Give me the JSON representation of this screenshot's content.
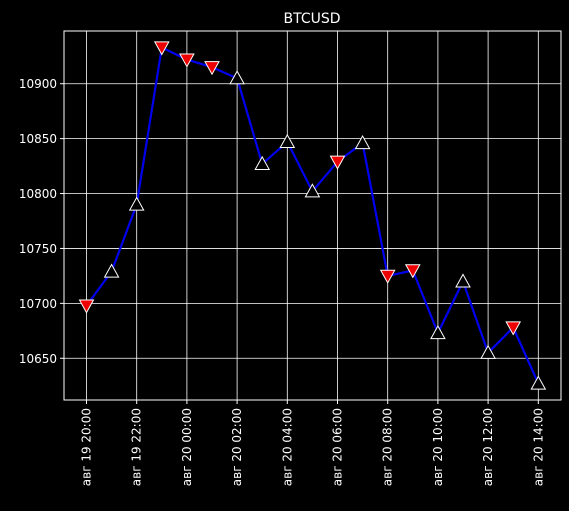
{
  "chart_data": {
    "type": "line",
    "title": "BTCUSD",
    "xlabel": "",
    "ylabel": "",
    "ylim": [
      10612,
      10948
    ],
    "grid": true,
    "x": [
      "авг 19 20:00",
      "авг 19 21:00",
      "авг 19 22:00",
      "авг 19 23:00",
      "авг 20 00:00",
      "авг 20 01:00",
      "авг 20 02:00",
      "авг 20 03:00",
      "авг 20 04:00",
      "авг 20 05:00",
      "авг 20 06:00",
      "авг 20 07:00",
      "авг 20 08:00",
      "авг 20 09:00",
      "авг 20 10:00",
      "авг 20 11:00",
      "авг 20 12:00",
      "авг 20 13:00",
      "авг 20 14:00"
    ],
    "x_tick_labels": [
      "авг 19 20:00",
      "авг 19 22:00",
      "авг 20 00:00",
      "авг 20 02:00",
      "авг 20 04:00",
      "авг 20 06:00",
      "авг 20 08:00",
      "авг 20 10:00",
      "авг 20 12:00",
      "авг 20 14:00"
    ],
    "y_ticks": [
      10650,
      10700,
      10750,
      10800,
      10850,
      10900
    ],
    "series": [
      {
        "values": [
          10698,
          10729,
          10790,
          10933,
          10922,
          10915,
          10905,
          10827,
          10847,
          10802,
          10829,
          10846,
          10725,
          10730,
          10673,
          10720,
          10655,
          10678,
          10627
        ],
        "markers": [
          "down",
          "up",
          "up",
          "down",
          "down",
          "down",
          "up",
          "up",
          "up",
          "up",
          "down",
          "up",
          "down",
          "down",
          "up",
          "up",
          "up",
          "down",
          "up"
        ]
      }
    ],
    "colors": {
      "line": "#0000ee",
      "up_marker": "#000000",
      "down_marker": "#ee0000",
      "marker_edge": "#ffffff",
      "grid": "#ffffff",
      "background": "#000000"
    }
  }
}
